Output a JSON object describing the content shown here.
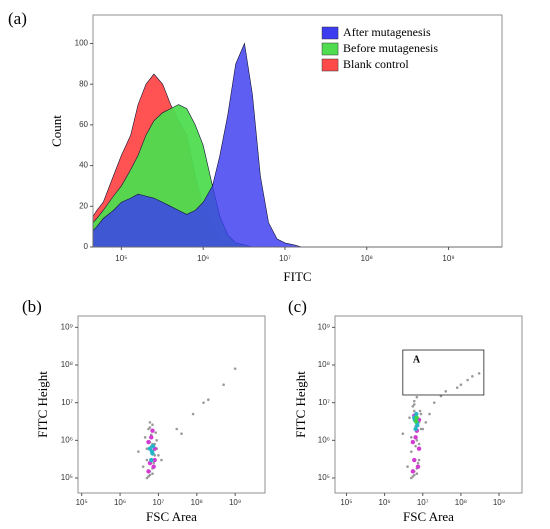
{
  "chart_data": [
    {
      "type": "area",
      "label": "(a)",
      "xlabel": "FITC",
      "ylabel": "Count",
      "log_x": true,
      "xlim": [
        45000,
        4500000000
      ],
      "ylim": [
        0,
        114
      ],
      "xticks": [
        {
          "value": 100000,
          "label": "10⁵"
        },
        {
          "value": 1000000,
          "label": "10⁶"
        },
        {
          "value": 10000000,
          "label": "10⁷"
        },
        {
          "value": 100000000,
          "label": "10⁸"
        },
        {
          "value": 1000000000,
          "label": "10⁹"
        }
      ],
      "yticks": [
        0,
        20,
        40,
        60,
        80,
        100
      ],
      "legend": "upper right",
      "x": [
        45000,
        50000,
        60000,
        80000,
        100000,
        130000,
        160000,
        200000,
        250000,
        320000,
        400000,
        500000,
        630000,
        800000,
        1000000,
        1300000,
        1600000,
        2000000,
        2500000,
        3200000,
        4000000,
        5000000,
        6300000,
        8000000,
        10000000,
        13000000,
        16000000,
        20000000,
        100000000,
        1000000000,
        4500000000
      ],
      "series": [
        {
          "name": "Blank control",
          "color": "#ff4a4a",
          "values": [
            15,
            18,
            22,
            35,
            45,
            55,
            70,
            80,
            85,
            80,
            70,
            62,
            55,
            35,
            20,
            10,
            5,
            2,
            1,
            0,
            0,
            0,
            0,
            0,
            0,
            0,
            0,
            0,
            0,
            0,
            0
          ]
        },
        {
          "name": "Before mutagenesis",
          "color": "#4fdc4f",
          "values": [
            12,
            14,
            18,
            25,
            30,
            38,
            45,
            55,
            62,
            66,
            68,
            70,
            68,
            60,
            50,
            30,
            15,
            6,
            2,
            1,
            0,
            0,
            0,
            0,
            0,
            0,
            0,
            0,
            0,
            0,
            0
          ]
        },
        {
          "name": "After mutagenesis",
          "color": "#3b3bf0",
          "values": [
            8,
            10,
            14,
            18,
            22,
            24,
            26,
            25,
            24,
            22,
            20,
            18,
            16,
            18,
            22,
            30,
            45,
            65,
            90,
            100,
            75,
            35,
            12,
            4,
            2,
            1,
            0,
            0,
            0,
            0,
            0
          ]
        }
      ]
    },
    {
      "type": "scatter",
      "label": "(b)",
      "xlabel": "FSC Area",
      "ylabel": "FITC Height",
      "log_x": true,
      "log_y": true,
      "xlim": [
        80000,
        6000000000
      ],
      "ylim": [
        40000,
        2000000000
      ],
      "xticks": [
        {
          "value": 100000,
          "label": "10⁵"
        },
        {
          "value": 1000000,
          "label": "10⁶"
        },
        {
          "value": 10000000,
          "label": "10⁷"
        },
        {
          "value": 100000000,
          "label": "10⁸"
        },
        {
          "value": 1000000000,
          "label": "10⁹"
        }
      ],
      "yticks": [
        {
          "value": 100000,
          "label": "10⁵"
        },
        {
          "value": 1000000,
          "label": "10⁶"
        },
        {
          "value": 10000000,
          "label": "10⁷"
        },
        {
          "value": 100000000,
          "label": "10⁸"
        },
        {
          "value": 1000000000,
          "label": "10⁹"
        }
      ],
      "series": [
        {
          "color": "#9a9a9a",
          "x": [
            4000000.0,
            5000000.0,
            6000000.0,
            7000000.0,
            8000000.0,
            9000000.0,
            10000000.0,
            4500000.0,
            5500000.0,
            6500000.0,
            7500000.0,
            8500000.0,
            5000000.0,
            6000000.0,
            7000000.0,
            8000000.0,
            6000000.0,
            7000000.0,
            5000000.0,
            9000000.0,
            6000000.0,
            7000000.0,
            8000000.0,
            5500000.0,
            6500000.0,
            30000000.0,
            80000000.0,
            200000000.0,
            500000000.0,
            1000000000.0,
            40000000.0,
            150000000.0,
            3000000.0,
            12000000.0,
            6000000.0,
            7000000.0
          ],
          "values": [
            200000.0,
            300000.0,
            150000.0,
            500000.0,
            800000.0,
            1000000.0,
            400000.0,
            1200000.0,
            2000000.0,
            700000.0,
            250000.0,
            1600000.0,
            600000.0,
            900000.0,
            180000.0,
            300000.0,
            3000000.0,
            130000.0,
            100000.0,
            600000.0,
            2200000.0,
            800000.0,
            400000.0,
            110000.0,
            1400000.0,
            2000000.0,
            5000000.0,
            12000000.0,
            30000000.0,
            80000000.0,
            1500000.0,
            10000000.0,
            500000.0,
            300000.0,
            120000.0,
            2600000.0
          ]
        },
        {
          "color": "#d23cd2",
          "x": [
            5500000.0,
            7500000.0,
            6000000.0,
            8000000.0,
            6500000.0,
            7000000.0,
            5500000.0,
            8000000.0
          ],
          "values": [
            150000.0,
            200000.0,
            250000.0,
            600000.0,
            1200000.0,
            1800000.0,
            900000.0,
            300000.0
          ]
        },
        {
          "color": "#27b4c8",
          "x": [
            6500000.0,
            7000000.0,
            6000000.0,
            7200000.0,
            6800000.0
          ],
          "values": [
            300000.0,
            450000.0,
            600000.0,
            700000.0,
            500000.0
          ]
        }
      ]
    },
    {
      "type": "scatter",
      "label": "(c)",
      "xlabel": "FSC Area",
      "ylabel": "FITC Height",
      "log_x": true,
      "log_y": true,
      "xlim": [
        50000,
        4000000000
      ],
      "ylim": [
        40000,
        2000000000
      ],
      "xticks": [
        {
          "value": 100000,
          "label": "10⁵"
        },
        {
          "value": 1000000,
          "label": "10⁶"
        },
        {
          "value": 10000000,
          "label": "10⁷"
        },
        {
          "value": 100000000,
          "label": "10⁸"
        },
        {
          "value": 1000000000,
          "label": "10⁹"
        }
      ],
      "yticks": [
        {
          "value": 100000,
          "label": "10⁵"
        },
        {
          "value": 1000000,
          "label": "10⁶"
        },
        {
          "value": 10000000,
          "label": "10⁷"
        },
        {
          "value": 100000000,
          "label": "10⁸"
        },
        {
          "value": 1000000000,
          "label": "10⁹"
        }
      ],
      "gate": {
        "label": "A",
        "x": [
          3000000,
          400000000
        ],
        "y": [
          16000000,
          250000000
        ]
      },
      "series": [
        {
          "color": "#9a9a9a",
          "x": [
            4000000.0,
            5000000.0,
            6000000.0,
            7000000.0,
            8000000.0,
            9000000.0,
            10000000.0,
            4500000.0,
            5500000.0,
            6500000.0,
            7500000.0,
            8500000.0,
            5000000.0,
            6000000.0,
            7000000.0,
            8000000.0,
            6000000.0,
            7000000.0,
            5000000.0,
            9000000.0,
            6000000.0,
            7000000.0,
            8000000.0,
            5500000.0,
            6500000.0,
            30000000.0,
            80000000.0,
            200000000.0,
            300000000.0,
            15000000.0,
            40000000.0,
            150000000.0,
            3000000.0,
            12000000.0,
            6000000.0,
            7000000.0,
            20000000.0,
            100000000.0
          ],
          "values": [
            200000.0,
            500000.0,
            150000.0,
            1000000.0,
            3000000.0,
            5000000.0,
            2000000.0,
            4000000.0,
            8000000.0,
            700000.0,
            250000.0,
            6000000.0,
            1200000.0,
            9000000.0,
            180000.0,
            300000.0,
            11000000.0,
            130000.0,
            100000.0,
            2000000.0,
            6000000.0,
            4000000.0,
            800000.0,
            110000.0,
            2400000.0,
            15000000.0,
            25000000.0,
            50000000.0,
            60000000.0,
            5000000.0,
            20000000.0,
            40000000.0,
            1500000.0,
            3000000.0,
            120000.0,
            14000000.0,
            10000000.0,
            30000000.0
          ]
        },
        {
          "color": "#d23cd2",
          "x": [
            5500000.0,
            7500000.0,
            6000000.0,
            8000000.0,
            6500000.0,
            7000000.0,
            5500000.0,
            8000000.0,
            6000000.0
          ],
          "values": [
            150000.0,
            200000.0,
            300000.0,
            600000.0,
            1200000.0,
            1800000.0,
            900000.0,
            3500000.0,
            4500000.0
          ]
        },
        {
          "color": "#27b4c8",
          "x": [
            6500000.0,
            7000000.0,
            6000000.0,
            7200000.0,
            6800000.0,
            6200000.0
          ],
          "values": [
            2000000.0,
            3000000.0,
            4000000.0,
            2500000.0,
            5000000.0,
            3500000.0
          ]
        },
        {
          "color": "#3fd24a",
          "x": [
            6600000.0,
            6900000.0
          ],
          "values": [
            3200000.0,
            4000000.0
          ]
        }
      ]
    }
  ]
}
